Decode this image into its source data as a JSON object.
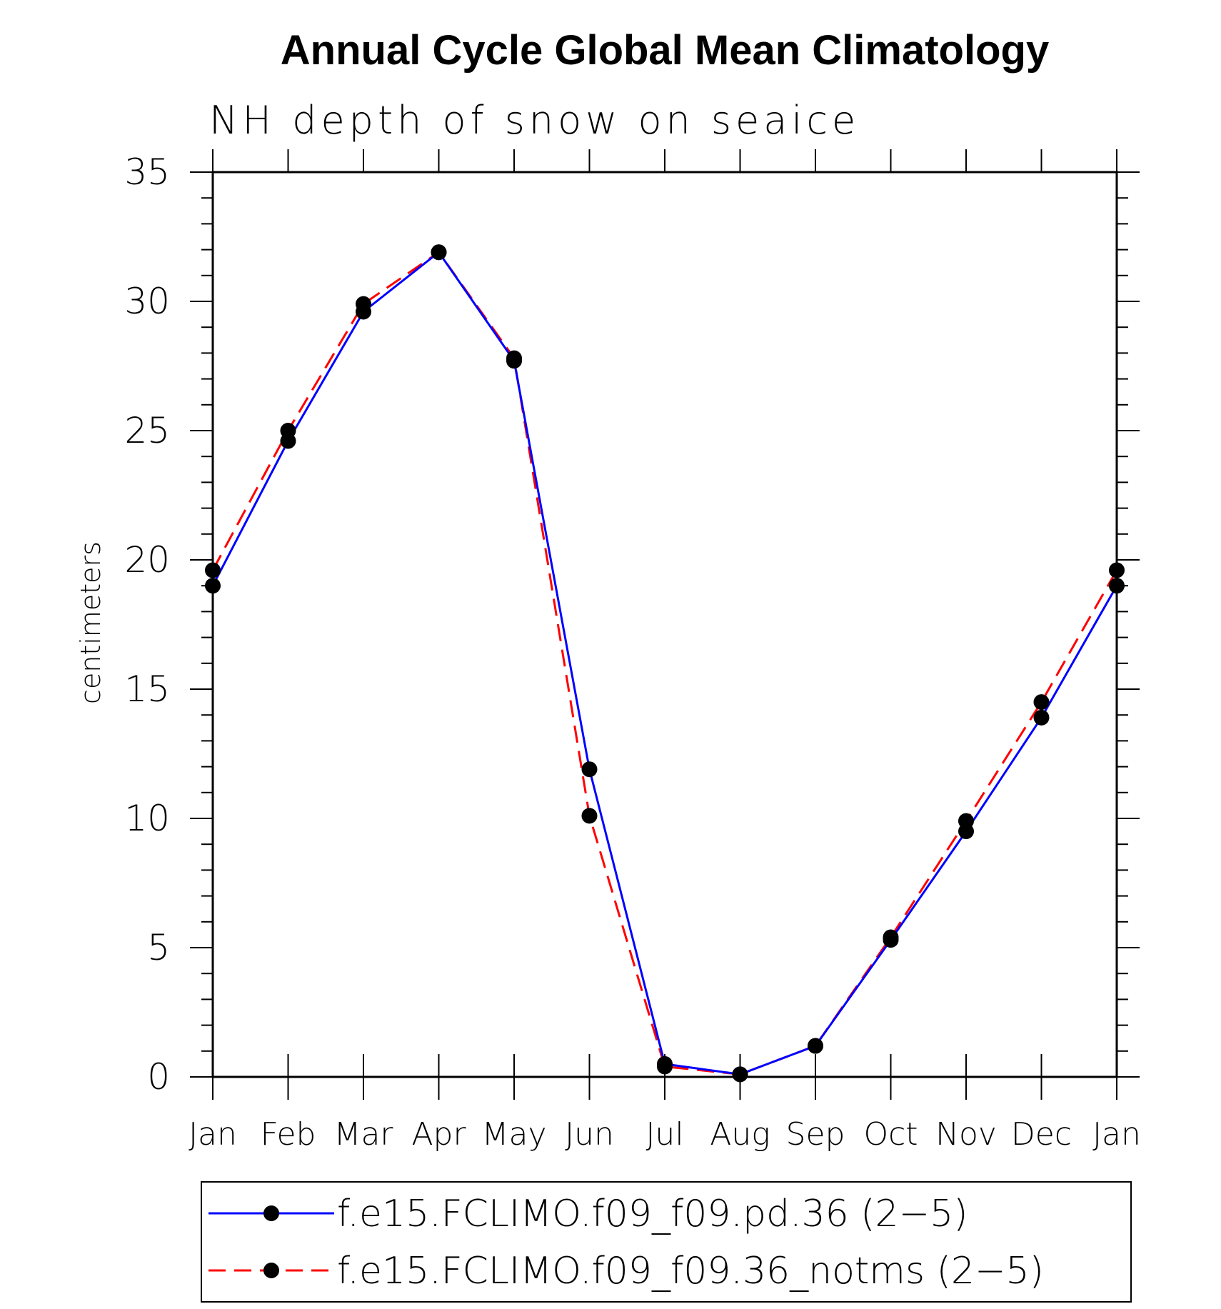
{
  "chart_data": {
    "type": "line",
    "title": "Annual Cycle Global Mean Climatology",
    "subtitle": "NH depth of snow on seaice",
    "xlabel": "",
    "ylabel": "centimeters",
    "categories": [
      "Jan",
      "Feb",
      "Mar",
      "Apr",
      "May",
      "Jun",
      "Jul",
      "Aug",
      "Sep",
      "Oct",
      "Nov",
      "Dec",
      "Jan"
    ],
    "ylim": [
      0,
      35
    ],
    "yticks": [
      0,
      5,
      10,
      15,
      20,
      25,
      30,
      35
    ],
    "grid": false,
    "legend_position": "bottom",
    "series": [
      {
        "name": "f.e15.FCLIMO.f09_f09.pd.36 (2−5)",
        "color": "#0000ff",
        "style": "solid",
        "marker": "filled-circle",
        "values": [
          19.0,
          24.6,
          29.6,
          31.9,
          27.7,
          11.9,
          0.5,
          0.1,
          1.2,
          5.3,
          9.5,
          13.9,
          19.0
        ]
      },
      {
        "name": "f.e15.FCLIMO.f09_f09.36_notms (2−5)",
        "color": "#ff0000",
        "style": "dashed",
        "marker": "filled-circle",
        "values": [
          19.6,
          25.0,
          29.9,
          31.9,
          27.8,
          10.1,
          0.4,
          0.1,
          1.2,
          5.4,
          9.9,
          14.5,
          19.6
        ]
      }
    ]
  }
}
